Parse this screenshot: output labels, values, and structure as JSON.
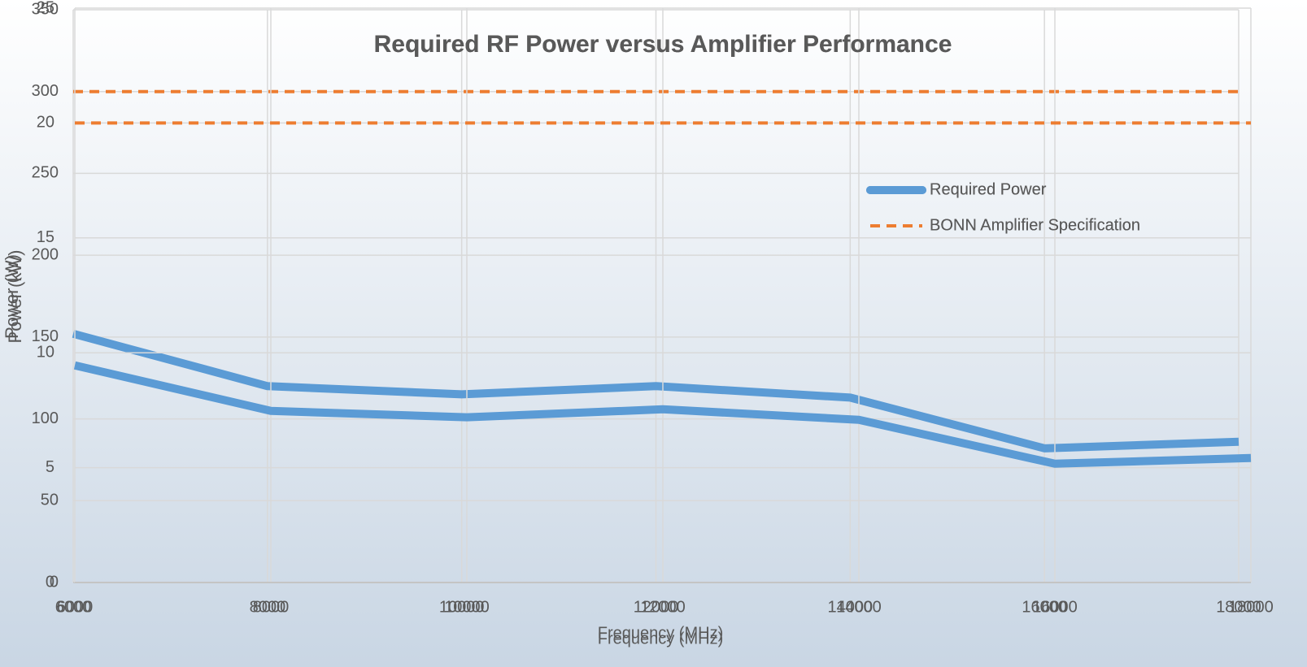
{
  "chart_data": [
    {
      "type": "line",
      "title": "Required RF Power versus Amplifier Performance",
      "x_label": "Frequency (MHz)",
      "y_label": "Power (W)",
      "x": [
        6000,
        8000,
        10000,
        12000,
        14000,
        16000,
        18000
      ],
      "series": [
        {
          "name": "Required Power",
          "color": "#5b9bd5",
          "values": [
            152,
            120,
            115,
            120,
            113,
            82,
            86
          ]
        },
        {
          "name": "BONN Amplifier Specification",
          "color": "#ed7d31",
          "dashed": true,
          "values": [
            300,
            300,
            300,
            300,
            300,
            300,
            300
          ]
        }
      ],
      "xlim": [
        6000,
        18000
      ],
      "xticks": [
        6000,
        8000,
        10000,
        12000,
        14000,
        16000,
        18000
      ],
      "ylim": [
        0,
        350
      ],
      "yticks": [
        0,
        50,
        100,
        150,
        200,
        250,
        300,
        350
      ],
      "grid": true
    },
    {
      "type": "line",
      "title": "Required RF Power versus Amplifier Performance",
      "x_label": "Frequency (MHz)",
      "y_label": "Power (kW)",
      "x": [
        6000,
        8000,
        10000,
        12000,
        14000,
        16000,
        18000
      ],
      "series": [
        {
          "name": "Required Power",
          "color": "#5b9bd5",
          "values": [
            9.45,
            7.47,
            7.19,
            7.54,
            7.08,
            5.17,
            5.42
          ]
        },
        {
          "name": "BONN Amplifier Specification",
          "color": "#ed7d31",
          "dashed": true,
          "values": [
            20,
            20,
            20,
            20,
            20,
            20,
            20
          ]
        }
      ],
      "xlim": [
        6000,
        18000
      ],
      "xticks": [
        6000,
        8000,
        10000,
        12000,
        14000,
        16000,
        18000
      ],
      "ylim": [
        0,
        25
      ],
      "yticks": [
        0,
        5,
        10,
        15,
        20,
        25
      ],
      "grid": true
    }
  ]
}
